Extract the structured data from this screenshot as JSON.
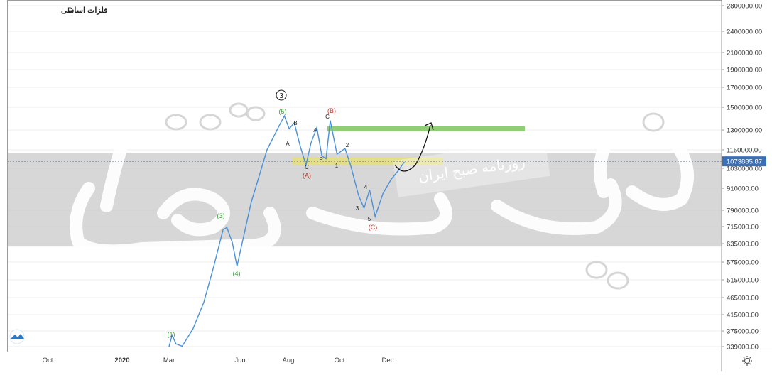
{
  "symbol": {
    "name": "فلزات اساسی",
    "interval": "D"
  },
  "watermark": {
    "logo_text": "دنیای اقتصاد",
    "banner_text": "روزنامه صبح ایران"
  },
  "colors": {
    "line": "#4a90d9",
    "price_tag": "#3a6fb5",
    "target_zone": "#8fce72",
    "support_zone": "#e8df7a",
    "band": "#c9c9c9",
    "wave_green": "#3aa335",
    "wave_red": "#c0392b",
    "wave_black": "#222222"
  },
  "price_axis": {
    "ticks": [
      "2800000.00",
      "2400000.00",
      "2100000.00",
      "1900000.00",
      "1700000.00",
      "1500000.00",
      "1300000.00",
      "1150000.00",
      "1030000.00",
      "910000.00",
      "790000.00",
      "715000.00",
      "635000.00",
      "575000.00",
      "515000.00",
      "465000.00",
      "415000.00",
      "375000.00",
      "339000.00"
    ],
    "last_price": "1073885.87"
  },
  "time_axis": {
    "labels": [
      "Oct",
      "2020",
      "Mar",
      "Jun",
      "Aug",
      "Oct",
      "Dec"
    ]
  },
  "wave_labels": {
    "circle_3": "3",
    "w1": "(1)",
    "w3": "(3)",
    "w4": "(4)",
    "w5": "(5)",
    "A_paren": "(A)",
    "B_paren": "(B)",
    "C_paren": "(C)",
    "a1": "A",
    "b1": "B",
    "c1": "C",
    "a2": "A",
    "b2": "B",
    "c2": "C",
    "n1": "1",
    "n2": "2",
    "n3": "3",
    "n4": "4",
    "n5": "5"
  },
  "chart_data": {
    "type": "line",
    "title": "فلزات اساسی",
    "interval": "D",
    "yscale": "log",
    "ylim": [
      330000,
      2800000
    ],
    "x_labels": [
      "Oct",
      "2020",
      "Mar",
      "Jun",
      "Aug",
      "Oct",
      "Dec"
    ],
    "last_value": 1073885.87,
    "series": [
      {
        "values": [
          [
            "2020-03-01",
            339000
          ],
          [
            "2020-03-05",
            365000
          ],
          [
            "2020-03-10",
            345000
          ],
          [
            "2020-03-18",
            340000
          ],
          [
            "2020-04-01",
            380000
          ],
          [
            "2020-04-15",
            450000
          ],
          [
            "2020-04-28",
            560000
          ],
          [
            "2020-05-10",
            700000
          ],
          [
            "2020-05-15",
            710000
          ],
          [
            "2020-05-22",
            640000
          ],
          [
            "2020-05-28",
            560000
          ],
          [
            "2020-06-05",
            660000
          ],
          [
            "2020-06-15",
            830000
          ],
          [
            "2020-06-25",
            980000
          ],
          [
            "2020-07-05",
            1150000
          ],
          [
            "2020-07-20",
            1330000
          ],
          [
            "2020-07-27",
            1420000
          ],
          [
            "2020-08-02",
            1310000
          ],
          [
            "2020-08-08",
            1360000
          ],
          [
            "2020-08-15",
            1180000
          ],
          [
            "2020-08-22",
            1050000
          ],
          [
            "2020-08-28",
            1200000
          ],
          [
            "2020-09-04",
            1320000
          ],
          [
            "2020-09-10",
            1110000
          ],
          [
            "2020-09-15",
            1090000
          ],
          [
            "2020-09-20",
            1380000
          ],
          [
            "2020-09-28",
            1120000
          ],
          [
            "2020-10-08",
            1160000
          ],
          [
            "2020-10-15",
            1050000
          ],
          [
            "2020-10-25",
            870000
          ],
          [
            "2020-11-01",
            800000
          ],
          [
            "2020-11-08",
            900000
          ],
          [
            "2020-11-15",
            760000
          ],
          [
            "2020-11-25",
            880000
          ],
          [
            "2020-12-05",
            960000
          ],
          [
            "2020-12-15",
            1020000
          ],
          [
            "2020-12-22",
            1070000
          ]
        ]
      }
    ],
    "annotations": {
      "resistance_zone": [
        1290000,
        1330000
      ],
      "support_zone": [
        1050000,
        1100000
      ],
      "band": [
        625000,
        1130000
      ]
    }
  }
}
